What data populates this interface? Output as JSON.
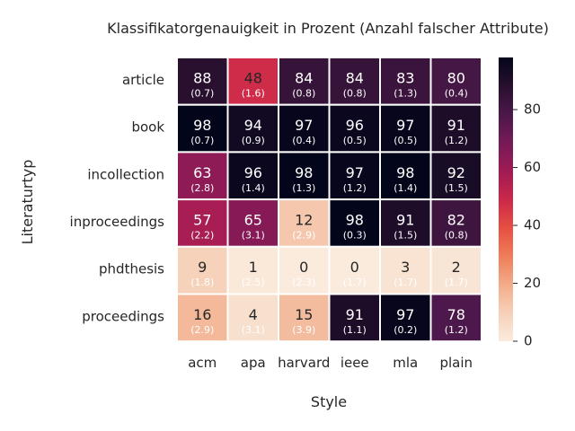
{
  "chart_data": {
    "type": "heatmap",
    "title": "Klassifikatorgenauigkeit in Prozent (Anzahl falscher Attribute)",
    "xlabel": "Style",
    "ylabel": "Literaturtyp",
    "x_categories": [
      "acm",
      "apa",
      "harvard",
      "ieee",
      "mla",
      "plain"
    ],
    "y_categories": [
      "article",
      "book",
      "incollection",
      "inproceedings",
      "phdthesis",
      "proceedings"
    ],
    "values": [
      [
        88,
        48,
        84,
        84,
        83,
        80
      ],
      [
        98,
        94,
        97,
        96,
        97,
        91
      ],
      [
        63,
        96,
        98,
        97,
        98,
        92
      ],
      [
        57,
        65,
        12,
        98,
        91,
        82
      ],
      [
        9,
        1,
        0,
        0,
        3,
        2
      ],
      [
        16,
        4,
        15,
        91,
        97,
        78
      ]
    ],
    "annotations": [
      [
        "(0.7)",
        "(1.6)",
        "(0.8)",
        "(0.8)",
        "(1.3)",
        "(0.4)"
      ],
      [
        "(0.7)",
        "(0.9)",
        "(0.4)",
        "(0.5)",
        "(0.5)",
        "(1.2)"
      ],
      [
        "(2.8)",
        "(1.4)",
        "(1.3)",
        "(1.2)",
        "(1.4)",
        "(1.5)"
      ],
      [
        "(2.2)",
        "(3.1)",
        "(2.9)",
        "(0.3)",
        "(1.5)",
        "(0.8)"
      ],
      [
        "(1.8)",
        "(2.5)",
        "(2.3)",
        "(1.7)",
        "(1.7)",
        "(1.7)"
      ],
      [
        "(2.9)",
        "(3.1)",
        "(3.9)",
        "(1.1)",
        "(0.2)",
        "(1.2)"
      ]
    ],
    "colorbar": {
      "min": 0,
      "max": 98,
      "ticks": [
        "0",
        "20",
        "40",
        "60",
        "80"
      ],
      "colormap": "rocket_r"
    }
  }
}
